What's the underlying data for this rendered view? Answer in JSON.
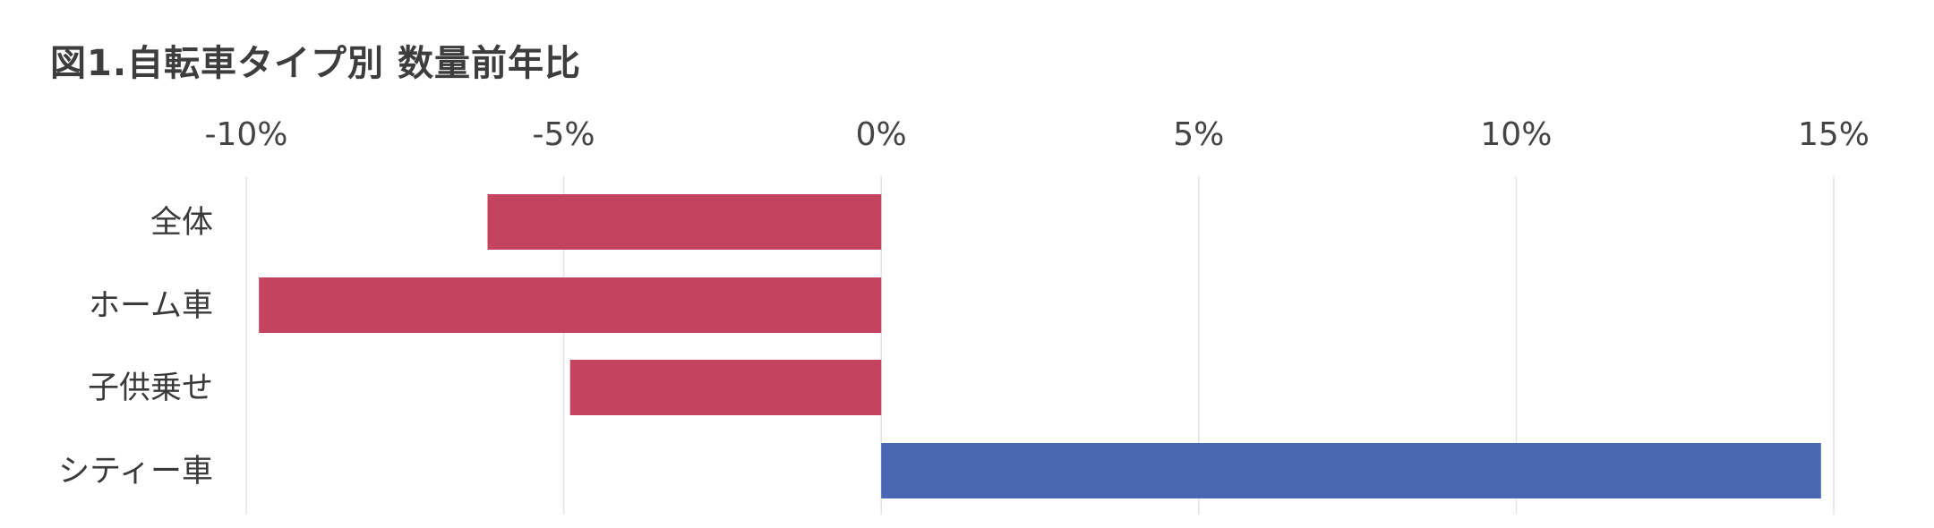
{
  "title": "図1.自転車タイプ別 数量前年比",
  "colors": {
    "negative": "#c4435e",
    "positive": "#4a67b3",
    "grid": "#e3e3e3",
    "text": "#444444"
  },
  "chart_data": {
    "type": "bar",
    "orientation": "horizontal",
    "title": "図1.自転車タイプ別 数量前年比",
    "categories": [
      "全体",
      "ホーム車",
      "子供乗せ",
      "シティー車"
    ],
    "values": [
      -6.2,
      -9.8,
      -4.9,
      14.8
    ],
    "unit": "%",
    "xlim": [
      -10,
      15
    ],
    "xticks": [
      -10,
      -5,
      0,
      5,
      10,
      15
    ],
    "xtick_labels": [
      "-10%",
      "-5%",
      "0%",
      "5%",
      "10%",
      "15%"
    ],
    "axis_position": "top",
    "grid": true,
    "legend": "none"
  }
}
